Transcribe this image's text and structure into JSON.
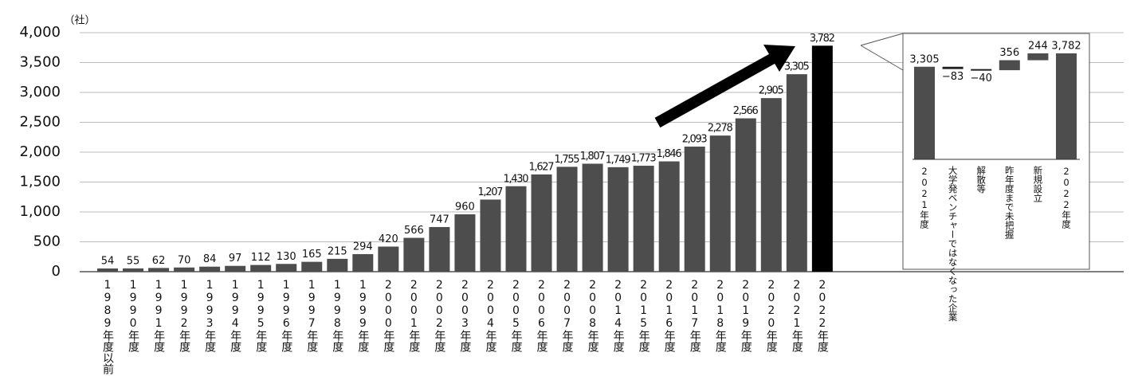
{
  "chart_data": [
    {
      "type": "bar",
      "unit_label": "（社）",
      "categories": [
        "1989年度以前",
        "1990年度",
        "1991年度",
        "1992年度",
        "1993年度",
        "1994年度",
        "1995年度",
        "1996年度",
        "1997年度",
        "1998年度",
        "1999年度",
        "2000年度",
        "2001年度",
        "2002年度",
        "2003年度",
        "2004年度",
        "2005年度",
        "2006年度",
        "2007年度",
        "2008年度",
        "2014年度",
        "2015年度",
        "2016年度",
        "2017年度",
        "2018年度",
        "2019年度",
        "2020年度",
        "2021年度",
        "2022年度"
      ],
      "values": [
        54,
        55,
        62,
        70,
        84,
        97,
        112,
        130,
        165,
        215,
        294,
        420,
        566,
        747,
        960,
        1207,
        1430,
        1627,
        1755,
        1807,
        1749,
        1773,
        1846,
        2093,
        2278,
        2566,
        2905,
        3305,
        3782
      ],
      "value_labels": [
        "54",
        "55",
        "62",
        "70",
        "84",
        "97",
        "112",
        "130",
        "165",
        "215",
        "294",
        "420",
        "566",
        "747",
        "960",
        "1,207",
        "1,430",
        "1,627",
        "1,755",
        "1,807",
        "1,749",
        "1,773",
        "1,846",
        "2,093",
        "2,278",
        "2,566",
        "2,905",
        "3,305",
        "3,782"
      ],
      "colors": [
        "#4d4d4d",
        "#4d4d4d",
        "#4d4d4d",
        "#4d4d4d",
        "#4d4d4d",
        "#4d4d4d",
        "#4d4d4d",
        "#4d4d4d",
        "#4d4d4d",
        "#4d4d4d",
        "#4d4d4d",
        "#4d4d4d",
        "#4d4d4d",
        "#4d4d4d",
        "#4d4d4d",
        "#4d4d4d",
        "#4d4d4d",
        "#4d4d4d",
        "#4d4d4d",
        "#4d4d4d",
        "#4d4d4d",
        "#4d4d4d",
        "#4d4d4d",
        "#4d4d4d",
        "#4d4d4d",
        "#4d4d4d",
        "#4d4d4d",
        "#4d4d4d",
        "#000000"
      ],
      "ylim": [
        0,
        4000
      ],
      "yticks": [
        0,
        500,
        {
          "value": 1000,
          "label": "1,000"
        },
        {
          "value": 1500,
          "label": "1,500"
        },
        {
          "value": 2000,
          "label": "2,000"
        },
        {
          "value": 2500,
          "label": "2,500"
        },
        {
          "value": 3000,
          "label": "3,000"
        },
        {
          "value": 3500,
          "label": "3,500"
        },
        {
          "value": 4000,
          "label": "4,000"
        }
      ],
      "grid": true
    },
    {
      "type": "waterfall",
      "categories": [
        "2021年度",
        "大学発ベンチャーではなくなった企業",
        "解散等",
        "昨年度まで未把握",
        "新規設立",
        "2022年度"
      ],
      "values": [
        3305,
        -83,
        -40,
        356,
        244,
        3782
      ],
      "value_labels": [
        "3,305",
        "−83",
        "−40",
        "356",
        "244",
        "3,782"
      ],
      "color": "#4d4d4d"
    }
  ]
}
